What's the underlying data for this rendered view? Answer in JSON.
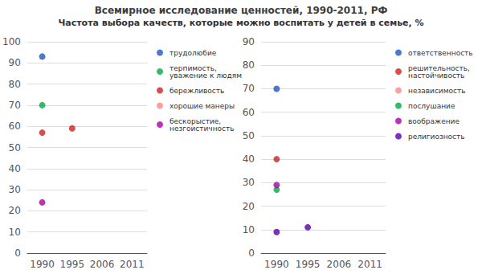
{
  "chart_data": [
    {
      "type": "scatter",
      "title": "Всемирное исследование ценностей, 1990-2011, РФ",
      "subtitle": "Частота выбора качеств, которые можно воспитать у детей в семье, %",
      "categories": [
        "1990",
        "1995",
        "2006",
        "2011"
      ],
      "series": [
        {
          "name": "трудолюбие",
          "color": "#1e56c8",
          "values": [
            93,
            null,
            null,
            null
          ]
        },
        {
          "name": "терпимость,\nуважение к людям",
          "color": "#00aa44",
          "values": [
            70,
            null,
            null,
            null
          ]
        },
        {
          "name": "бережливость",
          "color": "#cc2222",
          "values": [
            57,
            59,
            null,
            null
          ]
        },
        {
          "name": "хорошие манеры",
          "color": "#ff8888",
          "values": [
            null,
            null,
            null,
            null
          ]
        },
        {
          "name": "бескорыстие,\nнезгоистичность",
          "color": "#aa00aa",
          "values": [
            24,
            null,
            null,
            null
          ]
        }
      ],
      "ylim": [
        0,
        100
      ],
      "yticks": [
        0,
        10,
        20,
        30,
        40,
        50,
        60,
        70,
        80,
        90,
        100
      ],
      "grid": true,
      "legend": "right"
    },
    {
      "type": "scatter",
      "categories": [
        "1990",
        "1995",
        "2006",
        "2011"
      ],
      "series": [
        {
          "name": "ответственность",
          "color": "#1e56c8",
          "values": [
            70,
            null,
            null,
            null
          ]
        },
        {
          "name": "решительность,\nнастойчивость",
          "color": "#cc2222",
          "values": [
            40,
            null,
            null,
            null
          ]
        },
        {
          "name": "независимость",
          "color": "#ff8888",
          "values": [
            null,
            null,
            null,
            null
          ]
        },
        {
          "name": "послушание",
          "color": "#00aa44",
          "values": [
            27,
            null,
            null,
            null
          ]
        },
        {
          "name": "воображение",
          "color": "#aa00aa",
          "values": [
            29,
            null,
            null,
            null
          ]
        },
        {
          "name": "религиозность",
          "color": "#5500aa",
          "values": [
            9,
            11,
            null,
            null
          ]
        }
      ],
      "ylim": [
        0,
        90
      ],
      "yticks": [
        0,
        10,
        20,
        30,
        40,
        50,
        60,
        70,
        80,
        90
      ],
      "grid": true,
      "legend": "right"
    }
  ]
}
